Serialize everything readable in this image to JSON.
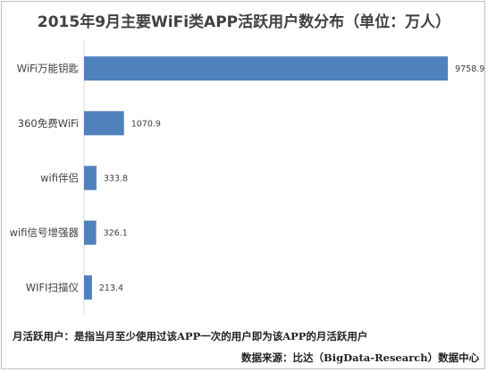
{
  "chart_data": {
    "type": "bar",
    "orientation": "horizontal",
    "title": "2015年9月主要WiFi类APP活跃用户数分布（单位：万人）",
    "categories": [
      "WiFi万能钥匙",
      "360免费WiFi",
      "wifi伴侣",
      "wifi信号增强器",
      "WIFI扫描仪"
    ],
    "values": [
      9758.9,
      1070.9,
      333.8,
      326.1,
      213.4
    ],
    "value_labels": [
      "9758.9",
      "1070.9",
      "333.8",
      "326.1",
      "213.4"
    ],
    "xlabel": "",
    "ylabel": "",
    "xlim": [
      0,
      10500
    ],
    "grid": false,
    "legend": "none",
    "bar_color": "#4f81bd"
  },
  "notes": {
    "definition": "月活跃用户：是指当月至少使用过该APP一次的用户即为该APP的月活跃用户",
    "source": "数据来源：比达（BigData-Research）数据中心"
  }
}
